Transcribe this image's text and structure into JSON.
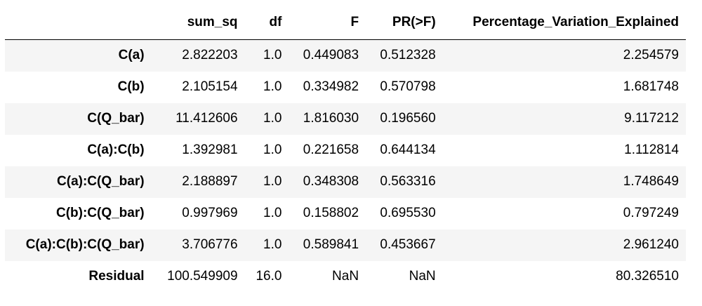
{
  "table": {
    "corner": "",
    "columns": [
      "sum_sq",
      "df",
      "F",
      "PR(>F)",
      "Percentage_Variation_Explained"
    ],
    "rows": [
      {
        "label": "C(a)",
        "cells": [
          "2.822203",
          "1.0",
          "0.449083",
          "0.512328",
          "2.254579"
        ]
      },
      {
        "label": "C(b)",
        "cells": [
          "2.105154",
          "1.0",
          "0.334982",
          "0.570798",
          "1.681748"
        ]
      },
      {
        "label": "C(Q_bar)",
        "cells": [
          "11.412606",
          "1.0",
          "1.816030",
          "0.196560",
          "9.117212"
        ]
      },
      {
        "label": "C(a):C(b)",
        "cells": [
          "1.392981",
          "1.0",
          "0.221658",
          "0.644134",
          "1.112814"
        ]
      },
      {
        "label": "C(a):C(Q_bar)",
        "cells": [
          "2.188897",
          "1.0",
          "0.348308",
          "0.563316",
          "1.748649"
        ]
      },
      {
        "label": "C(b):C(Q_bar)",
        "cells": [
          "0.997969",
          "1.0",
          "0.158802",
          "0.695530",
          "0.797249"
        ]
      },
      {
        "label": "C(a):C(b):C(Q_bar)",
        "cells": [
          "3.706776",
          "1.0",
          "0.589841",
          "0.453667",
          "2.961240"
        ]
      },
      {
        "label": "Residual",
        "cells": [
          "100.549909",
          "16.0",
          "NaN",
          "NaN",
          "80.326510"
        ]
      }
    ]
  }
}
